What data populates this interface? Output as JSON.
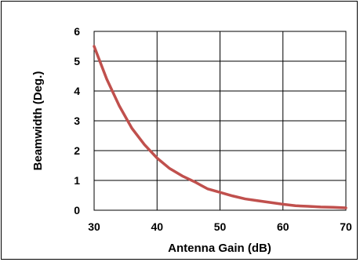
{
  "chart_data": {
    "type": "line",
    "title": "",
    "xlabel": "Antenna Gain (dB)",
    "ylabel": "Beamwidth (Deg.)",
    "xlim": [
      30,
      70
    ],
    "ylim": [
      0,
      6
    ],
    "xticks": [
      "30",
      "40",
      "50",
      "60",
      "70"
    ],
    "yticks": [
      "0",
      "1",
      "2",
      "3",
      "4",
      "5",
      "6"
    ],
    "grid": true,
    "legend": "none",
    "series": [
      {
        "color": "#c0504d",
        "x": [
          30,
          32,
          34,
          36,
          38,
          40,
          42,
          44,
          46,
          48,
          50,
          52,
          54,
          56,
          58,
          60,
          62,
          64,
          66,
          68,
          70
        ],
        "y": [
          5.5,
          4.4,
          3.5,
          2.75,
          2.2,
          1.75,
          1.4,
          1.15,
          0.95,
          0.72,
          0.6,
          0.48,
          0.38,
          0.32,
          0.26,
          0.2,
          0.15,
          0.13,
          0.11,
          0.1,
          0.08
        ]
      }
    ]
  }
}
